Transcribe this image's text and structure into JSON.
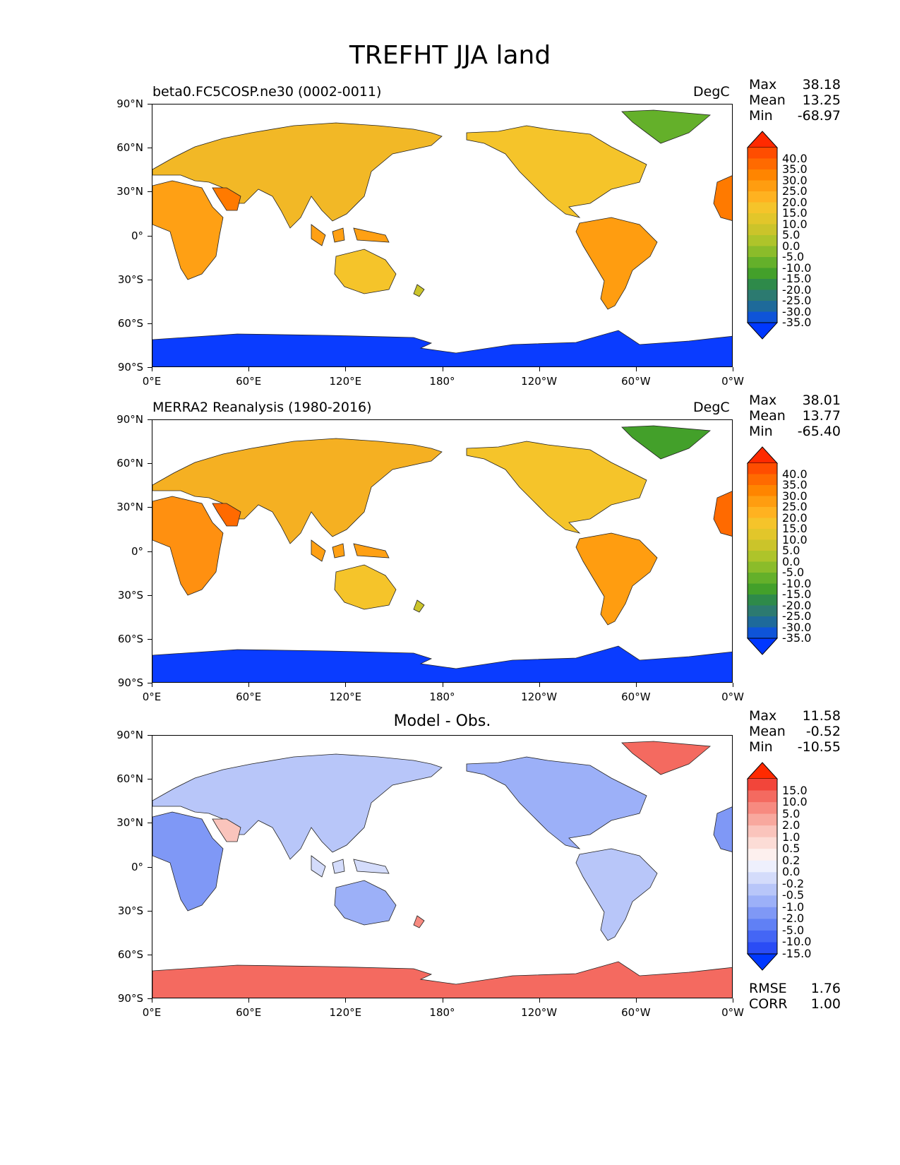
{
  "figure": {
    "title": "TREFHT JJA land"
  },
  "axes": {
    "lat_ticks": [
      "90°N",
      "60°N",
      "30°N",
      "0°",
      "30°S",
      "60°S",
      "90°S"
    ],
    "lon_ticks": [
      "0°E",
      "60°E",
      "120°E",
      "180°",
      "120°W",
      "60°W",
      "0°W"
    ]
  },
  "panels": [
    {
      "left_title": "beta0.FC5COSP.ne30 (0002-0011)",
      "center_title": "",
      "units": "DegC",
      "stats": [
        {
          "label": "Max",
          "value": "38.18"
        },
        {
          "label": "Mean",
          "value": "13.25"
        },
        {
          "label": "Min",
          "value": "-68.97"
        }
      ]
    },
    {
      "left_title": "MERRA2 Reanalysis (1980-2016)",
      "center_title": "",
      "units": "DegC",
      "stats": [
        {
          "label": "Max",
          "value": "38.01"
        },
        {
          "label": "Mean",
          "value": "13.77"
        },
        {
          "label": "Min",
          "value": "-65.40"
        }
      ]
    },
    {
      "left_title": "",
      "center_title": "Model - Obs.",
      "units": "",
      "stats": [
        {
          "label": "Max",
          "value": "11.58"
        },
        {
          "label": "Mean",
          "value": "-0.52"
        },
        {
          "label": "Min",
          "value": "-10.55"
        }
      ],
      "bottom_stats": [
        {
          "label": "RMSE",
          "value": "1.76"
        },
        {
          "label": "CORR",
          "value": "1.00"
        }
      ]
    }
  ],
  "colorbars": {
    "temperature": {
      "labels": [
        "40.0",
        "35.0",
        "30.0",
        "25.0",
        "20.0",
        "15.0",
        "10.0",
        "5.0",
        "0.0",
        "-5.0",
        "-10.0",
        "-15.0",
        "-20.0",
        "-25.0",
        "-30.0",
        "-35.0"
      ],
      "colors": [
        "#ff2a00",
        "#ff4d00",
        "#ff6a00",
        "#ff8500",
        "#ff9d10",
        "#ffb220",
        "#f5c42a",
        "#e2c62a",
        "#cbc42a",
        "#aec42a",
        "#8bbc2a",
        "#64b02a",
        "#43a02a",
        "#2e8a4a",
        "#2c7a70",
        "#1e6a9a",
        "#0e54d8",
        "#0038ff"
      ]
    },
    "difference": {
      "labels": [
        "15.0",
        "10.0",
        "5.0",
        "2.0",
        "1.0",
        "0.5",
        "0.2",
        "0.0",
        "-0.2",
        "-0.5",
        "-1.0",
        "-2.0",
        "-5.0",
        "-10.0",
        "-15.0"
      ],
      "colors": [
        "#ff2a00",
        "#f2453a",
        "#f46a60",
        "#f78a80",
        "#f8a89e",
        "#fac4bc",
        "#fcdcd6",
        "#fdf0ee",
        "#eef0fd",
        "#d4dcfb",
        "#b8c6f9",
        "#9cb0f8",
        "#7f98f6",
        "#6080f5",
        "#4466f5",
        "#2a4cf5",
        "#0038ff"
      ]
    }
  }
}
